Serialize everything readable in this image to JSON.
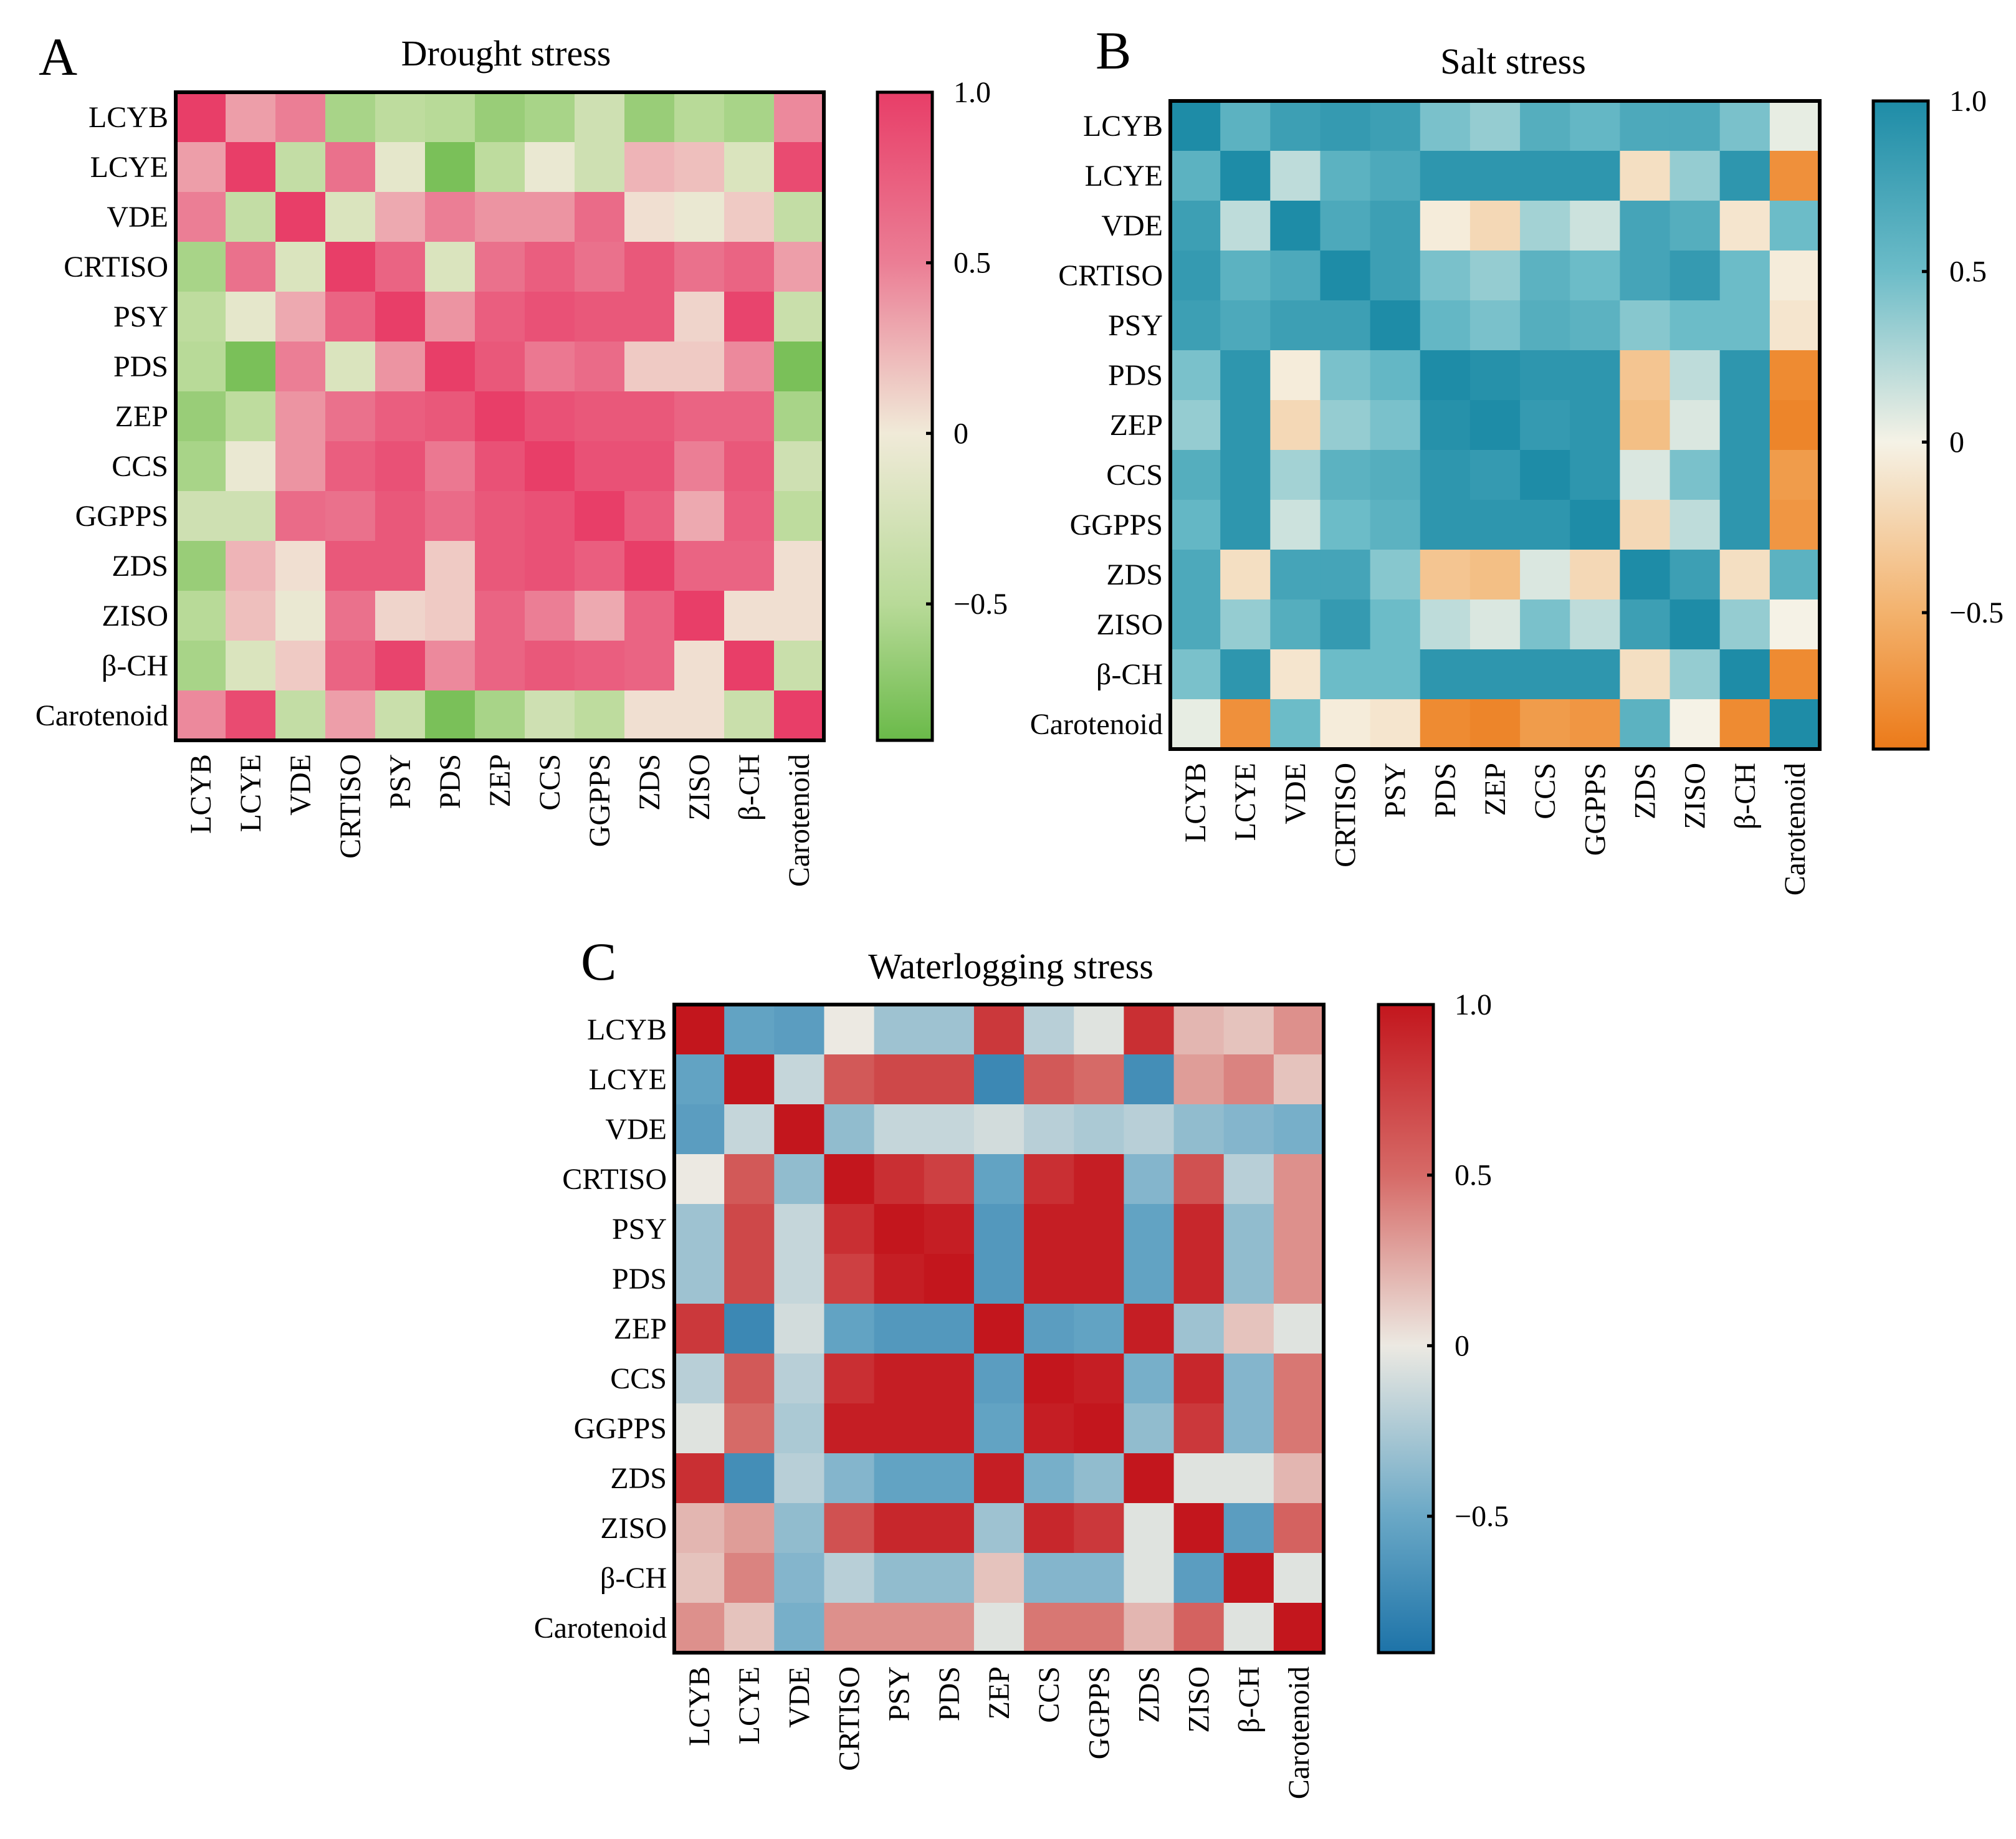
{
  "figure": {
    "charts": [
      {
        "id": "drought",
        "letter": "A",
        "title": "Drought stress",
        "palette": "green-pink"
      },
      {
        "id": "salt",
        "letter": "B",
        "title": "Salt stress",
        "palette": "orange-teal"
      },
      {
        "id": "waterlogging",
        "letter": "C",
        "title": "Waterlogging stress",
        "palette": "blue-red"
      }
    ]
  },
  "palettes": {
    "green-pink": [
      [
        -1.0,
        "#6aba49"
      ],
      [
        -0.5,
        "#b8da98"
      ],
      [
        0.0,
        "#f0ead8"
      ],
      [
        0.5,
        "#eb7e95"
      ],
      [
        1.0,
        "#e83e68"
      ]
    ],
    "orange-teal": [
      [
        -1.0,
        "#ec7a19"
      ],
      [
        -0.5,
        "#f3b26d"
      ],
      [
        0.0,
        "#f5f2e6"
      ],
      [
        0.5,
        "#6cbcc8"
      ],
      [
        1.0,
        "#1e8ca7"
      ]
    ],
    "blue-red": [
      [
        -1.0,
        "#1d73a8"
      ],
      [
        -0.5,
        "#6aa8c6"
      ],
      [
        0.0,
        "#ece9e2"
      ],
      [
        0.5,
        "#d66a67"
      ],
      [
        1.0,
        "#c3161d"
      ]
    ]
  },
  "chart_data": [
    {
      "type": "heatmap",
      "title": "Drought stress",
      "panel": "A",
      "rows": [
        "LCYB",
        "LCYE",
        "VDE",
        "CRTISO",
        "PSY",
        "PDS",
        "ZEP",
        "CCS",
        "GGPPS",
        "ZDS",
        "ZISO",
        "β-CH",
        "Carotenoid"
      ],
      "columns": [
        "LCYB",
        "LCYE",
        "VDE",
        "CRTISO",
        "PSY",
        "PDS",
        "ZEP",
        "CCS",
        "GGPPS",
        "ZDS",
        "ZISO",
        "β-CH",
        "Carotenoid"
      ],
      "values": [
        [
          1.0,
          0.35,
          0.5,
          -0.6,
          -0.45,
          -0.5,
          -0.7,
          -0.6,
          -0.3,
          -0.7,
          -0.5,
          -0.6,
          0.45
        ],
        [
          0.35,
          1.0,
          -0.4,
          0.6,
          -0.1,
          -0.9,
          -0.45,
          -0.05,
          -0.3,
          0.25,
          0.2,
          -0.2,
          0.9
        ],
        [
          0.5,
          -0.4,
          1.0,
          -0.2,
          0.3,
          0.5,
          0.4,
          0.4,
          0.65,
          0.05,
          -0.05,
          0.15,
          -0.4
        ],
        [
          -0.6,
          0.6,
          -0.2,
          1.0,
          0.7,
          -0.2,
          0.6,
          0.75,
          0.6,
          0.8,
          0.6,
          0.7,
          0.35
        ],
        [
          -0.45,
          -0.1,
          0.3,
          0.7,
          1.0,
          0.4,
          0.75,
          0.85,
          0.8,
          0.8,
          0.1,
          0.95,
          -0.35
        ],
        [
          -0.5,
          -0.9,
          0.5,
          -0.2,
          0.4,
          1.0,
          0.8,
          0.55,
          0.65,
          0.15,
          0.15,
          0.45,
          -0.9
        ],
        [
          -0.7,
          -0.45,
          0.4,
          0.6,
          0.75,
          0.8,
          1.0,
          0.85,
          0.8,
          0.8,
          0.7,
          0.7,
          -0.6
        ],
        [
          -0.6,
          -0.05,
          0.4,
          0.75,
          0.85,
          0.55,
          0.85,
          1.0,
          0.85,
          0.85,
          0.5,
          0.8,
          -0.3
        ],
        [
          -0.3,
          -0.3,
          0.65,
          0.6,
          0.8,
          0.65,
          0.8,
          0.85,
          1.0,
          0.75,
          0.3,
          0.75,
          -0.45
        ],
        [
          -0.7,
          0.25,
          0.05,
          0.8,
          0.8,
          0.15,
          0.8,
          0.85,
          0.75,
          1.0,
          0.7,
          0.7,
          0.05
        ],
        [
          -0.5,
          0.2,
          -0.05,
          0.6,
          0.1,
          0.15,
          0.7,
          0.5,
          0.3,
          0.7,
          1.0,
          0.05,
          0.05
        ],
        [
          -0.6,
          -0.2,
          0.15,
          0.7,
          0.95,
          0.45,
          0.7,
          0.8,
          0.75,
          0.7,
          0.05,
          1.0,
          -0.35
        ],
        [
          0.45,
          0.9,
          -0.4,
          0.35,
          -0.35,
          -0.9,
          -0.6,
          -0.3,
          -0.45,
          0.05,
          0.05,
          -0.35,
          1.0
        ]
      ],
      "colorbar": {
        "range": [
          -0.9,
          1.0
        ],
        "ticks": [
          1.0,
          0.5,
          0,
          -0.5
        ],
        "tick_labels": [
          "1.0",
          "0.5",
          "0",
          "−0.5"
        ]
      }
    },
    {
      "type": "heatmap",
      "title": "Salt stress",
      "panel": "B",
      "rows": [
        "LCYB",
        "LCYE",
        "VDE",
        "CRTISO",
        "PSY",
        "PDS",
        "ZEP",
        "CCS",
        "GGPPS",
        "ZDS",
        "ZISO",
        "β-CH",
        "Carotenoid"
      ],
      "columns": [
        "LCYB",
        "LCYE",
        "VDE",
        "CRTISO",
        "PSY",
        "PDS",
        "ZEP",
        "CCS",
        "GGPPS",
        "ZDS",
        "ZISO",
        "β-CH",
        "Carotenoid"
      ],
      "values": [
        [
          1.0,
          0.6,
          0.8,
          0.85,
          0.8,
          0.45,
          0.35,
          0.65,
          0.55,
          0.7,
          0.7,
          0.45,
          0.05
        ],
        [
          0.6,
          1.0,
          0.2,
          0.6,
          0.7,
          0.9,
          0.9,
          0.9,
          0.9,
          -0.15,
          0.35,
          0.9,
          -0.8
        ],
        [
          0.8,
          0.2,
          1.0,
          0.7,
          0.8,
          -0.05,
          -0.2,
          0.3,
          0.15,
          0.75,
          0.65,
          -0.1,
          0.5
        ],
        [
          0.85,
          0.6,
          0.7,
          1.0,
          0.8,
          0.45,
          0.35,
          0.6,
          0.5,
          0.75,
          0.85,
          0.5,
          -0.05
        ],
        [
          0.8,
          0.7,
          0.8,
          0.8,
          1.0,
          0.55,
          0.45,
          0.65,
          0.6,
          0.4,
          0.5,
          0.5,
          -0.1
        ],
        [
          0.45,
          0.9,
          -0.05,
          0.45,
          0.55,
          1.0,
          0.95,
          0.9,
          0.9,
          -0.35,
          0.2,
          0.9,
          -0.85
        ],
        [
          0.35,
          0.9,
          -0.2,
          0.35,
          0.45,
          0.95,
          1.0,
          0.85,
          0.9,
          -0.4,
          0.1,
          0.9,
          -0.9
        ],
        [
          0.65,
          0.9,
          0.3,
          0.6,
          0.65,
          0.9,
          0.85,
          1.0,
          0.9,
          0.1,
          0.45,
          0.9,
          -0.7
        ],
        [
          0.55,
          0.9,
          0.15,
          0.5,
          0.6,
          0.9,
          0.9,
          0.9,
          1.0,
          -0.2,
          0.2,
          0.9,
          -0.75
        ],
        [
          0.7,
          -0.15,
          0.75,
          0.75,
          0.4,
          -0.35,
          -0.4,
          0.1,
          -0.2,
          1.0,
          0.8,
          -0.15,
          0.6
        ],
        [
          0.7,
          0.35,
          0.65,
          0.85,
          0.5,
          0.2,
          0.1,
          0.45,
          0.2,
          0.8,
          1.0,
          0.35,
          0.0
        ],
        [
          0.45,
          0.9,
          -0.1,
          0.5,
          0.5,
          0.9,
          0.9,
          0.9,
          0.9,
          -0.15,
          0.35,
          1.0,
          -0.85
        ],
        [
          0.05,
          -0.8,
          0.5,
          -0.05,
          -0.1,
          -0.85,
          -0.9,
          -0.7,
          -0.75,
          0.6,
          0.0,
          -0.85,
          1.0
        ]
      ],
      "colorbar": {
        "range": [
          -0.9,
          1.0
        ],
        "ticks": [
          1.0,
          0.5,
          0,
          -0.5
        ],
        "tick_labels": [
          "1.0",
          "0.5",
          "0",
          "−0.5"
        ]
      }
    },
    {
      "type": "heatmap",
      "title": "Waterlogging stress",
      "panel": "C",
      "rows": [
        "LCYB",
        "LCYE",
        "VDE",
        "CRTISO",
        "PSY",
        "PDS",
        "ZEP",
        "CCS",
        "GGPPS",
        "ZDS",
        "ZISO",
        "β-CH",
        "Carotenoid"
      ],
      "columns": [
        "LCYB",
        "LCYE",
        "VDE",
        "CRTISO",
        "PSY",
        "PDS",
        "ZEP",
        "CCS",
        "GGPPS",
        "ZDS",
        "ZISO",
        "β-CH",
        "Carotenoid"
      ],
      "values": [
        [
          1.0,
          -0.55,
          -0.6,
          0.0,
          -0.3,
          -0.3,
          0.8,
          -0.2,
          -0.05,
          0.85,
          0.2,
          0.15,
          0.35
        ],
        [
          -0.55,
          1.0,
          -0.15,
          0.6,
          0.7,
          0.7,
          -0.8,
          0.6,
          0.5,
          -0.75,
          0.3,
          0.4,
          0.15
        ],
        [
          -0.6,
          -0.15,
          1.0,
          -0.35,
          -0.15,
          -0.15,
          -0.1,
          -0.2,
          -0.25,
          -0.2,
          -0.35,
          -0.4,
          -0.45
        ],
        [
          0.0,
          0.6,
          -0.35,
          1.0,
          0.85,
          0.75,
          -0.55,
          0.85,
          0.95,
          -0.4,
          0.65,
          -0.2,
          0.35
        ],
        [
          -0.3,
          0.7,
          -0.15,
          0.85,
          1.0,
          0.95,
          -0.65,
          0.95,
          0.95,
          -0.55,
          0.9,
          -0.35,
          0.35
        ],
        [
          -0.3,
          0.7,
          -0.15,
          0.75,
          0.95,
          1.0,
          -0.65,
          0.95,
          0.95,
          -0.55,
          0.9,
          -0.35,
          0.35
        ],
        [
          0.8,
          -0.8,
          -0.1,
          -0.55,
          -0.65,
          -0.65,
          1.0,
          -0.6,
          -0.55,
          0.95,
          -0.3,
          0.15,
          -0.05
        ],
        [
          -0.2,
          0.6,
          -0.2,
          0.85,
          0.95,
          0.95,
          -0.6,
          1.0,
          0.95,
          -0.45,
          0.9,
          -0.4,
          0.45
        ],
        [
          -0.05,
          0.5,
          -0.25,
          0.95,
          0.95,
          0.95,
          -0.55,
          0.95,
          1.0,
          -0.35,
          0.8,
          -0.4,
          0.45
        ],
        [
          0.85,
          -0.75,
          -0.2,
          -0.4,
          -0.55,
          -0.55,
          0.95,
          -0.45,
          -0.35,
          1.0,
          -0.05,
          -0.05,
          0.2
        ],
        [
          0.2,
          0.3,
          -0.35,
          0.65,
          0.9,
          0.9,
          -0.3,
          0.9,
          0.8,
          -0.05,
          1.0,
          -0.6,
          0.55
        ],
        [
          0.15,
          0.4,
          -0.4,
          -0.2,
          -0.35,
          -0.35,
          0.15,
          -0.4,
          -0.4,
          -0.05,
          -0.6,
          1.0,
          -0.05
        ],
        [
          0.35,
          0.15,
          -0.45,
          0.35,
          0.35,
          0.35,
          -0.05,
          0.45,
          0.45,
          0.2,
          0.55,
          -0.05,
          1.0
        ]
      ],
      "colorbar": {
        "range": [
          -0.9,
          1.0
        ],
        "ticks": [
          1.0,
          0.5,
          0,
          -0.5
        ],
        "tick_labels": [
          "1.0",
          "0.5",
          "0",
          "−0.5"
        ]
      }
    }
  ]
}
